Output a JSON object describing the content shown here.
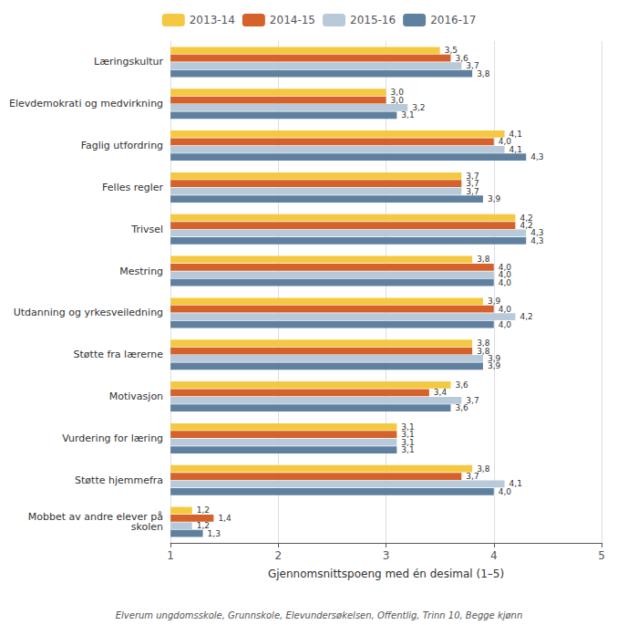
{
  "chart_data": {
    "type": "bar",
    "orientation": "horizontal",
    "categories": [
      "Læringskultur",
      "Elevdemokrati og medvirkning",
      "Faglig utfordring",
      "Felles regler",
      "Trivsel",
      "Mestring",
      "Utdanning og yrkesveiledning",
      "Støtte fra lærerne",
      "Motivasjon",
      "Vurdering for læring",
      "Støtte hjemmefra",
      "Mobbet av andre elever på\nskolen"
    ],
    "series": [
      {
        "name": "2013-14",
        "color": "#F5C842",
        "values": [
          3.5,
          3.0,
          4.1,
          3.7,
          4.2,
          3.8,
          3.9,
          3.8,
          3.6,
          3.1,
          3.8,
          1.2
        ],
        "value_labels": [
          "3,5",
          "3,0",
          "4,1",
          "3,7",
          "4,2",
          "3,8",
          "3,9",
          "3,8",
          "3,6",
          "3,1",
          "3,8",
          "1,2"
        ]
      },
      {
        "name": "2014-15",
        "color": "#D4622A",
        "values": [
          3.6,
          3.0,
          4.0,
          3.7,
          4.2,
          4.0,
          4.0,
          3.8,
          3.4,
          3.1,
          3.7,
          1.4
        ],
        "value_labels": [
          "3,6",
          "3,0",
          "4,0",
          "3,7",
          "4,2",
          "4,0",
          "4,0",
          "3,8",
          "3,4",
          "3,1",
          "3,7",
          "1,4"
        ]
      },
      {
        "name": "2015-16",
        "color": "#B8C9D9",
        "values": [
          3.7,
          3.2,
          4.1,
          3.7,
          4.3,
          4.0,
          4.2,
          3.9,
          3.7,
          3.1,
          4.1,
          1.2
        ],
        "value_labels": [
          "3,7",
          "3,2",
          "4,1",
          "3,7",
          "4,3",
          "4,0",
          "4,2",
          "3,9",
          "3,7",
          "3,1",
          "4,1",
          "1,2"
        ]
      },
      {
        "name": "2016-17",
        "color": "#6080A0",
        "values": [
          3.8,
          3.1,
          4.3,
          3.9,
          4.3,
          4.0,
          4.0,
          3.9,
          3.6,
          3.1,
          4.0,
          1.3
        ],
        "value_labels": [
          "3,8",
          "3,1",
          "4,3",
          "3,9",
          "4,3",
          "4,0",
          "4,0",
          "3,9",
          "3,6",
          "3,1",
          "4,0",
          "1,3"
        ]
      }
    ],
    "xlabel": "Gjennomsnittspoeng med én desimal (1–5)",
    "annotations": [
      "Elverum ungdomsskole, Grunnskole, Elevundersøkelsen, Offentlig, Trinn 10, Begge kjønn"
    ],
    "xlim": [
      1,
      5
    ],
    "xticks": [
      1,
      2,
      3,
      4,
      5
    ],
    "grid": true,
    "legend": "top",
    "data_labels": true
  }
}
